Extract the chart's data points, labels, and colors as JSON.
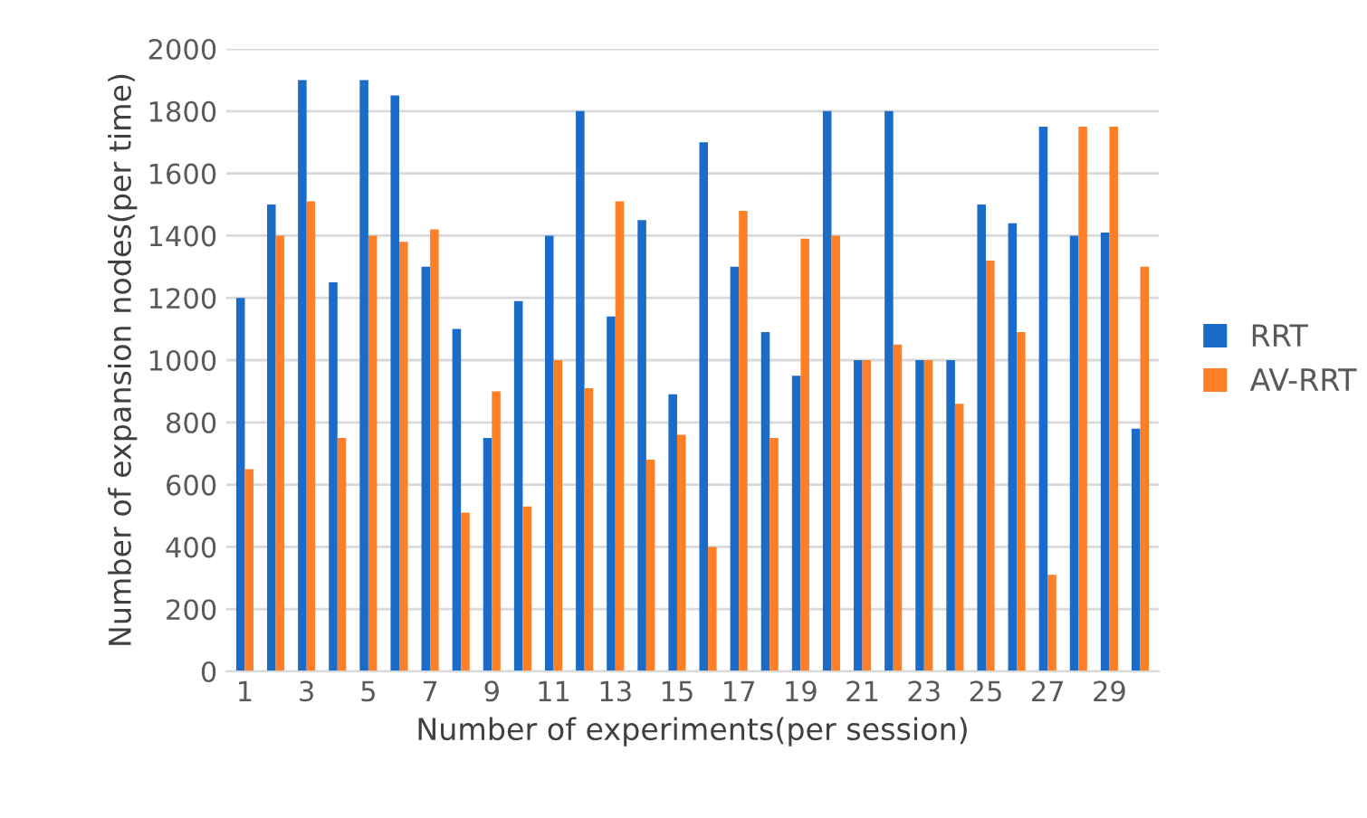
{
  "chart_data": {
    "type": "bar",
    "xlabel": "Number of experiments(per session)",
    "ylabel": "Number of expansion nodes(per time)",
    "categories": [
      "1",
      null,
      "3",
      null,
      "5",
      null,
      "7",
      null,
      "9",
      null,
      "11",
      null,
      "13",
      null,
      "15",
      null,
      "17",
      null,
      "19",
      null,
      "21",
      null,
      "23",
      null,
      "25",
      null,
      "27",
      null,
      "29",
      null
    ],
    "series": [
      {
        "name": "RRT",
        "color": "#1a6cc8",
        "values": [
          1200,
          1500,
          1900,
          1250,
          1900,
          1850,
          1300,
          1100,
          750,
          1190,
          1400,
          1800,
          1140,
          1450,
          890,
          1700,
          1300,
          1090,
          950,
          1800,
          1000,
          1800,
          1000,
          1000,
          1500,
          1440,
          1750,
          1400,
          1410,
          780
        ]
      },
      {
        "name": "AV-RRT",
        "color": "#ff7f27",
        "values": [
          650,
          1400,
          1510,
          750,
          1400,
          1380,
          1420,
          510,
          900,
          530,
          1000,
          910,
          1510,
          680,
          760,
          400,
          1480,
          750,
          1390,
          1400,
          1000,
          1050,
          1000,
          860,
          1320,
          1090,
          310,
          1750,
          1750,
          1300
        ]
      }
    ],
    "ylim": [
      0,
      2000
    ],
    "yticks": [
      0,
      200,
      400,
      600,
      800,
      1000,
      1200,
      1400,
      1600,
      1800,
      2000
    ],
    "grid": "y",
    "legend": "right"
  }
}
